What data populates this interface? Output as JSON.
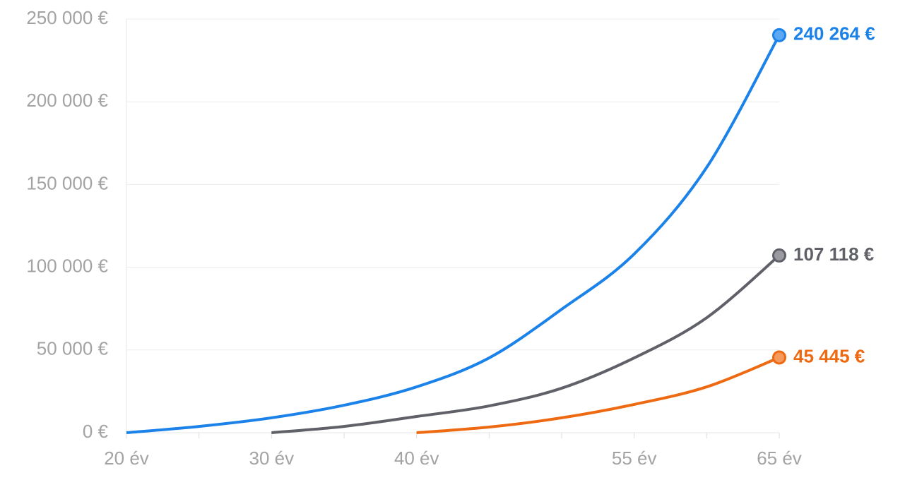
{
  "chart_data": {
    "type": "line",
    "x": [
      20,
      25,
      30,
      35,
      40,
      45,
      50,
      55,
      60,
      65
    ],
    "series": [
      {
        "name": null,
        "color": "#1a82e8",
        "marker_fill": "#5aa9f2",
        "values": [
          0,
          3800,
          9000,
          16600,
          27700,
          45200,
          74600,
          108000,
          160400,
          240264
        ],
        "value_labels": [
          null,
          null,
          null,
          null,
          null,
          null,
          null,
          null,
          null,
          "240 264 €"
        ]
      },
      {
        "name": null,
        "color": "#5f6068",
        "marker_fill": "#9a9ba0",
        "values": [
          null,
          null,
          0,
          3800,
          9800,
          16200,
          26900,
          45200,
          69500,
          107118
        ],
        "value_labels": [
          null,
          null,
          null,
          null,
          null,
          null,
          null,
          null,
          null,
          "107 118 €"
        ]
      },
      {
        "name": null,
        "color": "#ee6a12",
        "marker_fill": "#f59a5c",
        "values": [
          null,
          null,
          null,
          null,
          0,
          3400,
          9000,
          17100,
          27700,
          45445
        ],
        "value_labels": [
          null,
          null,
          null,
          null,
          null,
          null,
          null,
          null,
          null,
          "45 445 €"
        ]
      }
    ],
    "xlim": [
      20,
      65
    ],
    "xticks": [
      {
        "value": 20,
        "label": "20 év"
      },
      {
        "value": 30,
        "label": "30 év"
      },
      {
        "value": 40,
        "label": "40 év"
      },
      {
        "value": 55,
        "label": "55 év"
      },
      {
        "value": 65,
        "label": "65 év"
      }
    ],
    "x_minor_ticks": [
      25,
      35,
      45,
      50,
      60
    ],
    "ylim": [
      0,
      250000
    ],
    "yticks": [
      {
        "value": 0,
        "label": "0 €"
      },
      {
        "value": 50000,
        "label": "50 000 €"
      },
      {
        "value": 100000,
        "label": "100 000 €"
      },
      {
        "value": 150000,
        "label": "150 000 €"
      },
      {
        "value": 200000,
        "label": "200 000 €"
      },
      {
        "value": 250000,
        "label": "250 000 €"
      }
    ],
    "grid": true
  }
}
